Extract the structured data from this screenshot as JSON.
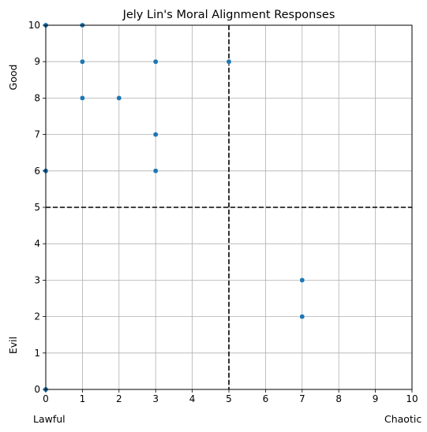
{
  "chart_data": {
    "type": "scatter",
    "title": "Jely Lin's Moral Alignment Responses",
    "xlim": [
      0,
      10
    ],
    "ylim": [
      0,
      10
    ],
    "xticks": [
      0,
      1,
      2,
      3,
      4,
      5,
      6,
      7,
      8,
      9,
      10
    ],
    "yticks": [
      0,
      1,
      2,
      3,
      4,
      5,
      6,
      7,
      8,
      9,
      10
    ],
    "grid": true,
    "x_labels": {
      "left": "Lawful",
      "right": "Chaotic"
    },
    "y_labels": {
      "top": "Good",
      "bottom": "Evil"
    },
    "reference_lines": {
      "x": 5,
      "y": 5
    },
    "point_color": "#1f77b4",
    "points": [
      {
        "x": 0,
        "y": 10
      },
      {
        "x": 1,
        "y": 10
      },
      {
        "x": 1,
        "y": 9
      },
      {
        "x": 3,
        "y": 9
      },
      {
        "x": 5,
        "y": 9
      },
      {
        "x": 1,
        "y": 8
      },
      {
        "x": 2,
        "y": 8
      },
      {
        "x": 3,
        "y": 7
      },
      {
        "x": 0,
        "y": 6
      },
      {
        "x": 3,
        "y": 6
      },
      {
        "x": 7,
        "y": 3
      },
      {
        "x": 7,
        "y": 2
      },
      {
        "x": 0,
        "y": 0
      }
    ]
  }
}
